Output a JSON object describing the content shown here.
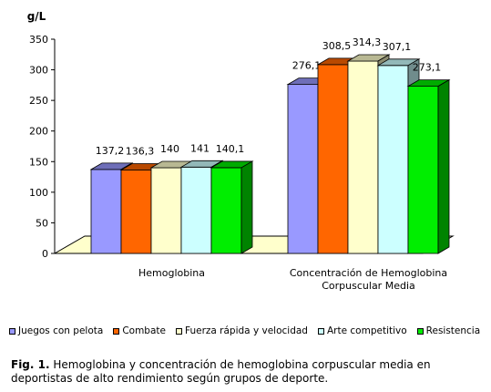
{
  "chart_data": {
    "type": "bar",
    "ylabel": "g/L",
    "ylim": [
      0,
      350
    ],
    "yticks": [
      0,
      50,
      100,
      150,
      200,
      250,
      300,
      350
    ],
    "categories": [
      "Hemoglobina",
      "Concentración de Hemoglobina\nCorpuscular Media"
    ],
    "series": [
      {
        "name": "Juegos con pelota",
        "values": [
          137.2,
          276.1
        ],
        "labels": [
          "137,2",
          "276,1"
        ],
        "color": "#9999ff"
      },
      {
        "name": "Combate",
        "values": [
          136.3,
          308.5
        ],
        "labels": [
          "136,3",
          "308,5"
        ],
        "color": "#ff6600"
      },
      {
        "name": "Fuerza rápida y velocidad",
        "values": [
          140,
          314.3
        ],
        "labels": [
          "140",
          "314,3"
        ],
        "color": "#ffffcc"
      },
      {
        "name": "Arte competitivo",
        "values": [
          141,
          307.1
        ],
        "labels": [
          "141",
          "307,1"
        ],
        "color": "#ccffff"
      },
      {
        "name": "Resistencia",
        "values": [
          140.1,
          273.1
        ],
        "labels": [
          "140,1",
          "273,1"
        ],
        "color": "#00ee00"
      }
    ],
    "floor_color": "#ffffcc"
  },
  "caption": {
    "label": "Fig. 1.",
    "text": " Hemoglobina y concentración de hemoglobina corpuscular  media en deportistas de alto rendimiento según grupos de deporte."
  }
}
